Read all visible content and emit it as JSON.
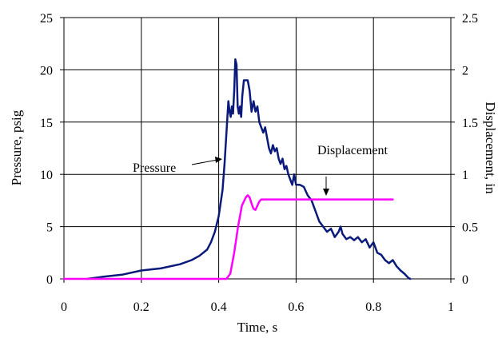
{
  "chart_data": {
    "type": "line",
    "xlabel": "Time, s",
    "ylabel_left": "Pressure, psig",
    "ylabel_right": "Displacement, in",
    "xlim": [
      0,
      1
    ],
    "ylim_left": [
      0,
      25
    ],
    "ylim_right": [
      0,
      2.5
    ],
    "x_ticks": [
      "0",
      "0.2",
      "0.4",
      "0.6",
      "0.8",
      "1"
    ],
    "y_left_ticks": [
      "0",
      "5",
      "10",
      "15",
      "20",
      "25"
    ],
    "y_right_ticks": [
      "0",
      "0.5",
      "1",
      "1.5",
      "2",
      "2.5"
    ],
    "grid": true,
    "legend": "none",
    "annotations": [
      "Pressure",
      "Displacement"
    ],
    "series": [
      {
        "name": "Pressure",
        "axis": "left",
        "color": "#0a1a7a",
        "x": [
          0.06,
          0.1,
          0.15,
          0.2,
          0.25,
          0.3,
          0.33,
          0.35,
          0.37,
          0.38,
          0.39,
          0.4,
          0.41,
          0.415,
          0.42,
          0.425,
          0.428,
          0.431,
          0.434,
          0.437,
          0.44,
          0.443,
          0.446,
          0.449,
          0.452,
          0.455,
          0.458,
          0.461,
          0.465,
          0.47,
          0.475,
          0.48,
          0.485,
          0.49,
          0.495,
          0.5,
          0.505,
          0.51,
          0.515,
          0.52,
          0.525,
          0.53,
          0.535,
          0.54,
          0.545,
          0.55,
          0.555,
          0.56,
          0.565,
          0.57,
          0.575,
          0.58,
          0.585,
          0.59,
          0.595,
          0.6,
          0.61,
          0.62,
          0.63,
          0.64,
          0.65,
          0.66,
          0.67,
          0.68,
          0.69,
          0.7,
          0.71,
          0.715,
          0.72,
          0.73,
          0.74,
          0.75,
          0.76,
          0.77,
          0.78,
          0.79,
          0.8,
          0.81,
          0.82,
          0.83,
          0.84,
          0.85,
          0.86,
          0.87,
          0.88,
          0.89,
          0.895
        ],
        "y": [
          0,
          0.2,
          0.4,
          0.8,
          1.0,
          1.4,
          1.8,
          2.2,
          2.8,
          3.5,
          4.5,
          6.0,
          8.5,
          11,
          14,
          17,
          16,
          15.5,
          16.5,
          15.8,
          18,
          21,
          20.5,
          16.5,
          15.8,
          16.5,
          15.5,
          17.5,
          19,
          19,
          19,
          18,
          16,
          17,
          16,
          16.5,
          15,
          14.5,
          14,
          14.5,
          13.5,
          12.5,
          12,
          12.8,
          12.2,
          12.5,
          11.5,
          11,
          11.5,
          10.5,
          10.8,
          10,
          9.5,
          9,
          10,
          9,
          9,
          8.8,
          8,
          7.5,
          6.5,
          5.5,
          5,
          4.5,
          4.8,
          4,
          4.5,
          5,
          4.3,
          3.8,
          4,
          3.7,
          4,
          3.5,
          3.8,
          3,
          3.5,
          2.5,
          2.3,
          1.8,
          1.5,
          1.8,
          1.2,
          0.8,
          0.5,
          0.1,
          0
        ]
      },
      {
        "name": "Displacement",
        "axis": "right",
        "color": "#ff00ff",
        "x": [
          0,
          0.42,
          0.43,
          0.44,
          0.45,
          0.46,
          0.47,
          0.475,
          0.48,
          0.485,
          0.49,
          0.495,
          0.5,
          0.505,
          0.51,
          0.52,
          0.55,
          0.6,
          0.7,
          0.8,
          0.85
        ],
        "y": [
          0,
          0,
          0.05,
          0.25,
          0.5,
          0.7,
          0.78,
          0.8,
          0.78,
          0.72,
          0.67,
          0.66,
          0.7,
          0.74,
          0.76,
          0.76,
          0.76,
          0.76,
          0.76,
          0.76,
          0.76
        ]
      }
    ]
  }
}
